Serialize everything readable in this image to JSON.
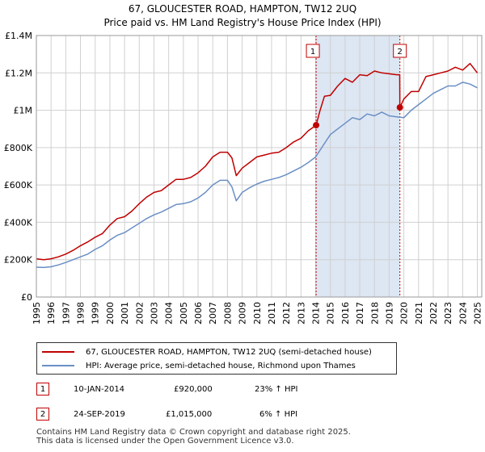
{
  "title": "67, GLOUCESTER ROAD, HAMPTON, TW12 2UQ",
  "subtitle": "Price paid vs. HM Land Registry's House Price Index (HPI)",
  "colors": {
    "property": "#c00000",
    "hpi": "#6a8fc4",
    "shade": "#dde6f3",
    "grid": "#d0d0d0",
    "vline": "#c00000"
  },
  "chart_data": {
    "type": "line",
    "title": "67, GLOUCESTER ROAD, HAMPTON, TW12 2UQ",
    "subtitle": "Price paid vs. HM Land Registry's House Price Index (HPI)",
    "xlabel": "",
    "ylabel": "",
    "xlim": [
      1995,
      2025.3
    ],
    "ylim": [
      0,
      1400000
    ],
    "y_ticks": [
      {
        "value": 0,
        "label": "£0"
      },
      {
        "value": 200000,
        "label": "£200K"
      },
      {
        "value": 400000,
        "label": "£400K"
      },
      {
        "value": 600000,
        "label": "£600K"
      },
      {
        "value": 800000,
        "label": "£800K"
      },
      {
        "value": 1000000,
        "label": "£1M"
      },
      {
        "value": 1200000,
        "label": "£1.2M"
      },
      {
        "value": 1400000,
        "label": "£1.4M"
      }
    ],
    "x_ticks": [
      "1995",
      "1996",
      "1997",
      "1998",
      "1999",
      "2000",
      "2001",
      "2002",
      "2003",
      "2004",
      "2005",
      "2006",
      "2007",
      "2008",
      "2009",
      "2010",
      "2011",
      "2012",
      "2013",
      "2014",
      "2015",
      "2016",
      "2017",
      "2018",
      "2019",
      "2020",
      "2021",
      "2022",
      "2023",
      "2024",
      "2025"
    ],
    "grid": true,
    "shaded_range": [
      2014.03,
      2019.73
    ],
    "series": [
      {
        "name": "67, GLOUCESTER ROAD, HAMPTON, TW12 2UQ (semi-detached house)",
        "color": "#c00000",
        "x": [
          1995,
          1995.5,
          1996,
          1996.5,
          1997,
          1997.5,
          1998,
          1998.5,
          1999,
          1999.5,
          2000,
          2000.5,
          2001,
          2001.5,
          2002,
          2002.5,
          2003,
          2003.5,
          2004,
          2004.5,
          2005,
          2005.5,
          2006,
          2006.5,
          2007,
          2007.5,
          2008,
          2008.3,
          2008.6,
          2009,
          2009.5,
          2010,
          2010.5,
          2011,
          2011.5,
          2012,
          2012.5,
          2013,
          2013.5,
          2014.03,
          2014.3,
          2014.6,
          2015,
          2015.5,
          2016,
          2016.5,
          2017,
          2017.5,
          2018,
          2018.5,
          2019,
          2019.5,
          2019.72,
          2019.73,
          2020,
          2020.5,
          2021,
          2021.5,
          2022,
          2022.5,
          2023,
          2023.5,
          2024,
          2024.5,
          2025
        ],
        "values": [
          205000,
          200000,
          205000,
          215000,
          230000,
          250000,
          275000,
          295000,
          320000,
          340000,
          385000,
          420000,
          430000,
          460000,
          500000,
          535000,
          560000,
          570000,
          600000,
          630000,
          630000,
          640000,
          665000,
          700000,
          750000,
          775000,
          775000,
          745000,
          650000,
          690000,
          720000,
          750000,
          760000,
          770000,
          775000,
          800000,
          830000,
          850000,
          890000,
          920000,
          1000000,
          1075000,
          1080000,
          1130000,
          1170000,
          1150000,
          1190000,
          1185000,
          1210000,
          1200000,
          1195000,
          1190000,
          1190000,
          1015000,
          1060000,
          1100000,
          1100000,
          1180000,
          1190000,
          1200000,
          1210000,
          1230000,
          1215000,
          1250000,
          1200000
        ]
      },
      {
        "name": "HPI: Average price, semi-detached house, Richmond upon Thames",
        "color": "#6a8fc4",
        "x": [
          1995,
          1995.5,
          1996,
          1996.5,
          1997,
          1997.5,
          1998,
          1998.5,
          1999,
          1999.5,
          2000,
          2000.5,
          2001,
          2001.5,
          2002,
          2002.5,
          2003,
          2003.5,
          2004,
          2004.5,
          2005,
          2005.5,
          2006,
          2006.5,
          2007,
          2007.5,
          2008,
          2008.3,
          2008.6,
          2009,
          2009.5,
          2010,
          2010.5,
          2011,
          2011.5,
          2012,
          2012.5,
          2013,
          2013.5,
          2014,
          2014.5,
          2015,
          2015.5,
          2016,
          2016.5,
          2017,
          2017.5,
          2018,
          2018.5,
          2019,
          2019.5,
          2020,
          2020.5,
          2021,
          2021.5,
          2022,
          2022.5,
          2023,
          2023.5,
          2024,
          2024.5,
          2025
        ],
        "values": [
          160000,
          158000,
          162000,
          172000,
          185000,
          200000,
          215000,
          230000,
          255000,
          275000,
          305000,
          330000,
          345000,
          370000,
          395000,
          420000,
          440000,
          455000,
          475000,
          495000,
          500000,
          510000,
          530000,
          560000,
          600000,
          625000,
          625000,
          590000,
          515000,
          560000,
          585000,
          605000,
          620000,
          630000,
          640000,
          655000,
          675000,
          695000,
          720000,
          750000,
          810000,
          870000,
          900000,
          930000,
          960000,
          950000,
          980000,
          970000,
          990000,
          970000,
          965000,
          960000,
          1000000,
          1030000,
          1060000,
          1090000,
          1110000,
          1130000,
          1130000,
          1150000,
          1140000,
          1120000
        ]
      }
    ],
    "annotations": [
      {
        "label": "1",
        "x": 2014.03,
        "y": 920000
      },
      {
        "label": "2",
        "x": 2019.73,
        "y": 1015000
      }
    ]
  },
  "legend": {
    "property_label": "67, GLOUCESTER ROAD, HAMPTON, TW12 2UQ (semi-detached house)",
    "hpi_label": "HPI: Average price, semi-detached house, Richmond upon Thames"
  },
  "transactions": [
    {
      "num": "1",
      "date": "10-JAN-2014",
      "price": "£920,000",
      "hpi_change": "23% ↑ HPI"
    },
    {
      "num": "2",
      "date": "24-SEP-2019",
      "price": "£1,015,000",
      "hpi_change": "6% ↑ HPI"
    }
  ],
  "footer": {
    "line1": "Contains HM Land Registry data © Crown copyright and database right 2025.",
    "line2": "This data is licensed under the Open Government Licence v3.0."
  }
}
